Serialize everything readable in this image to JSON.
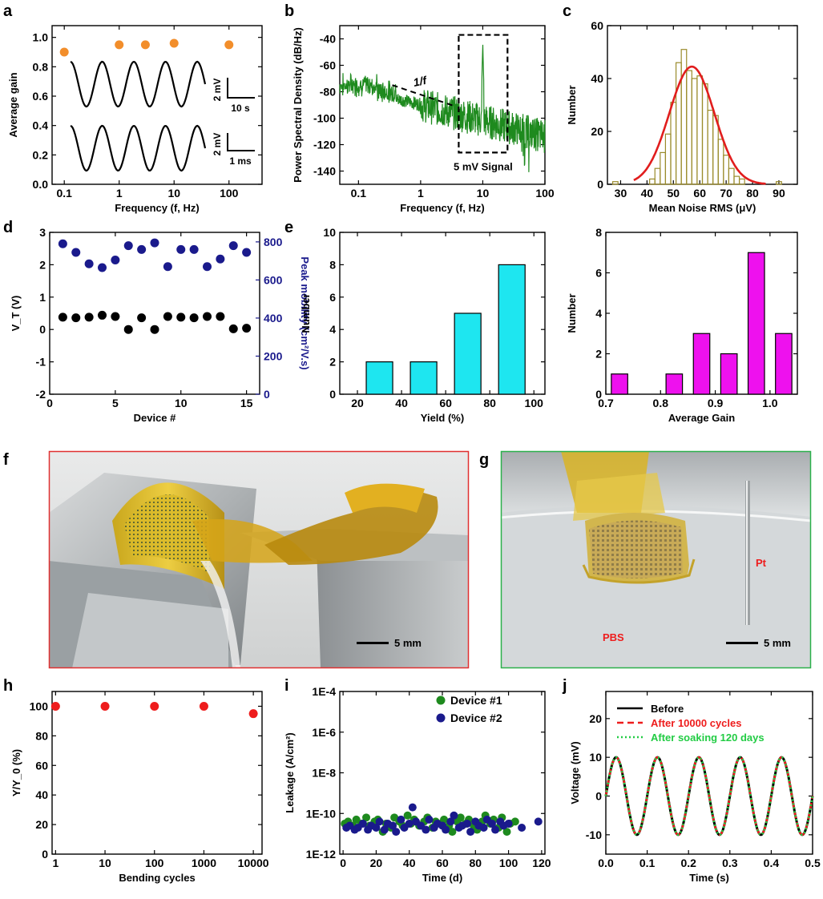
{
  "figure": {
    "panel_labels": [
      "a",
      "b",
      "c",
      "d",
      "e",
      "f",
      "g",
      "h",
      "i",
      "j"
    ]
  },
  "chart_data": [
    {
      "panel": "a",
      "type": "scatter",
      "xlabel": "Frequency (f, Hz)",
      "ylabel": "Average gain",
      "xscale": "log",
      "xlim": [
        0.06,
        400
      ],
      "ylim": [
        0.0,
        1.08
      ],
      "xticks": [
        0.1,
        1,
        10,
        100
      ],
      "xticklabels": [
        "0.1",
        "1",
        "10",
        "100"
      ],
      "yticks": [
        0.0,
        0.2,
        0.4,
        0.6,
        0.8,
        1.0
      ],
      "yticklabels": [
        "0.0",
        "0.2",
        "0.4",
        "0.6",
        "0.8",
        "1.0"
      ],
      "points": [
        {
          "x": 0.1,
          "y": 0.9
        },
        {
          "x": 1,
          "y": 0.95
        },
        {
          "x": 3,
          "y": 0.95
        },
        {
          "x": 10,
          "y": 0.96
        },
        {
          "x": 100,
          "y": 0.95
        }
      ],
      "point_color": "#f28e2b",
      "insets": [
        {
          "scale_v": "2 mV",
          "scale_t": "10 s"
        },
        {
          "scale_v": "2 mV",
          "scale_t": "1 ms"
        }
      ]
    },
    {
      "panel": "b",
      "type": "line",
      "xlabel": "Frequency (f, Hz)",
      "ylabel": "Power Spectral Density (dB/Hz)",
      "xscale": "log",
      "xlim": [
        0.05,
        100
      ],
      "ylim": [
        -150,
        -30
      ],
      "xticks": [
        0.1,
        1,
        10,
        100
      ],
      "xticklabels": [
        "0.1",
        "1",
        "10",
        "100"
      ],
      "yticks": [
        -140,
        -120,
        -100,
        -80,
        -60,
        -40
      ],
      "yticklabels": [
        "-140",
        "-120",
        "-100",
        "-80",
        "-60",
        "-40"
      ],
      "line_color": "#1e8a1e",
      "annotations": [
        "1/f",
        "5 mV Signal"
      ],
      "peak": {
        "x": 10,
        "y": -44
      }
    },
    {
      "panel": "c",
      "type": "bar",
      "xlabel": "Mean Noise RMS (μV)",
      "ylabel": "Number",
      "xlim": [
        25,
        97
      ],
      "ylim": [
        0,
        60
      ],
      "xticks": [
        30,
        40,
        50,
        60,
        70,
        80,
        90
      ],
      "xticklabels": [
        "30",
        "40",
        "50",
        "60",
        "70",
        "80",
        "90"
      ],
      "yticks": [
        0,
        20,
        40,
        60
      ],
      "yticklabels": [
        "0",
        "20",
        "40",
        "60"
      ],
      "bin_width": 2,
      "bins": [
        {
          "x": 28,
          "y": 1
        },
        {
          "x": 42,
          "y": 2
        },
        {
          "x": 44,
          "y": 6
        },
        {
          "x": 46,
          "y": 12
        },
        {
          "x": 48,
          "y": 19
        },
        {
          "x": 50,
          "y": 31
        },
        {
          "x": 52,
          "y": 46
        },
        {
          "x": 54,
          "y": 51
        },
        {
          "x": 56,
          "y": 43
        },
        {
          "x": 58,
          "y": 40
        },
        {
          "x": 60,
          "y": 41
        },
        {
          "x": 62,
          "y": 38
        },
        {
          "x": 64,
          "y": 28
        },
        {
          "x": 66,
          "y": 26
        },
        {
          "x": 68,
          "y": 17
        },
        {
          "x": 70,
          "y": 11
        },
        {
          "x": 72,
          "y": 6
        },
        {
          "x": 74,
          "y": 3
        },
        {
          "x": 76,
          "y": 2
        },
        {
          "x": 90,
          "y": 1
        }
      ],
      "fit": {
        "mean": 57,
        "sigma": 8.5,
        "peak": 44.5,
        "color": "#e11d1d"
      },
      "bar_color": "#9a8b2b"
    },
    {
      "panel": "d",
      "type": "scatter",
      "xlabel": "Device #",
      "ylabel": "V_T (V)",
      "y2label": "Peak mobility (cm²/V.s)",
      "xlim": [
        0,
        16
      ],
      "ylim": [
        -2,
        3
      ],
      "y2lim": [
        0,
        850
      ],
      "xticks": [
        0,
        5,
        10,
        15
      ],
      "xticklabels": [
        "0",
        "5",
        "10",
        "15"
      ],
      "yticks": [
        -2,
        -1,
        0,
        1,
        2,
        3
      ],
      "yticklabels": [
        "-2",
        "-1",
        "0",
        "1",
        "2",
        "3"
      ],
      "y2ticks": [
        0,
        200,
        400,
        600,
        800
      ],
      "y2ticklabels": [
        "0",
        "200",
        "400",
        "600",
        "800"
      ],
      "vt": [
        0.38,
        0.36,
        0.38,
        0.44,
        0.4,
        0.0,
        0.36,
        0.0,
        0.4,
        0.38,
        0.36,
        0.4,
        0.4,
        0.02,
        0.04
      ],
      "mobility": [
        790,
        745,
        685,
        665,
        705,
        780,
        760,
        795,
        670,
        760,
        760,
        670,
        710,
        780,
        745
      ],
      "vt_color": "#000000",
      "mobility_color": "#1a1a8c"
    },
    {
      "panel": "e-left",
      "type": "bar",
      "xlabel": "Yield (%)",
      "ylabel": "Number",
      "xlim": [
        12,
        105
      ],
      "ylim": [
        0,
        10
      ],
      "xticks": [
        20,
        40,
        60,
        80,
        100
      ],
      "xticklabels": [
        "20",
        "40",
        "60",
        "80",
        "100"
      ],
      "yticks": [
        0,
        2,
        4,
        6,
        8,
        10
      ],
      "yticklabels": [
        "0",
        "2",
        "4",
        "6",
        "8",
        "10"
      ],
      "bar_width": 12,
      "bars": [
        {
          "x": 30,
          "y": 2
        },
        {
          "x": 50,
          "y": 2
        },
        {
          "x": 70,
          "y": 5
        },
        {
          "x": 90,
          "y": 8
        }
      ],
      "bar_color": "#1ee6f0"
    },
    {
      "panel": "e-right",
      "type": "bar",
      "xlabel": "Average Gain",
      "ylabel": "Number",
      "xlim": [
        0.7,
        1.05
      ],
      "ylim": [
        0,
        8
      ],
      "xticks": [
        0.7,
        0.8,
        0.9,
        1.0
      ],
      "xticklabels": [
        "0.7",
        "0.8",
        "0.9",
        "1.0"
      ],
      "yticks": [
        0,
        2,
        4,
        6,
        8
      ],
      "yticklabels": [
        "0",
        "2",
        "4",
        "6",
        "8"
      ],
      "bar_width": 0.03,
      "bars": [
        {
          "x": 0.725,
          "y": 1
        },
        {
          "x": 0.825,
          "y": 1
        },
        {
          "x": 0.875,
          "y": 3
        },
        {
          "x": 0.925,
          "y": 2
        },
        {
          "x": 0.975,
          "y": 7
        },
        {
          "x": 1.025,
          "y": 3
        }
      ],
      "bar_color": "#ee11ee"
    },
    {
      "panel": "h",
      "type": "scatter",
      "xlabel": "Bending cycles",
      "ylabel": "Y/Y_0 (%)",
      "xscale": "log",
      "xlim": [
        0.85,
        15000
      ],
      "ylim": [
        0,
        110
      ],
      "xticks": [
        1,
        10,
        100,
        1000,
        10000
      ],
      "xticklabels": [
        "1",
        "10",
        "100",
        "1000",
        "10000"
      ],
      "yticks": [
        0,
        20,
        40,
        60,
        80,
        100
      ],
      "yticklabels": [
        "0",
        "20",
        "40",
        "60",
        "80",
        "100"
      ],
      "points": [
        {
          "x": 1,
          "y": 100
        },
        {
          "x": 10,
          "y": 100
        },
        {
          "x": 100,
          "y": 100
        },
        {
          "x": 1000,
          "y": 100
        },
        {
          "x": 10000,
          "y": 95
        }
      ],
      "point_color": "#ee1c1c"
    },
    {
      "panel": "i",
      "type": "scatter",
      "xlabel": "Time (d)",
      "ylabel": "Leakage (A/cm²)",
      "yscale": "log",
      "xlim": [
        -2,
        122
      ],
      "ylim_exp": [
        -12,
        -4
      ],
      "xticks": [
        0,
        20,
        40,
        60,
        80,
        100,
        120
      ],
      "xticklabels": [
        "0",
        "20",
        "40",
        "60",
        "80",
        "100",
        "120"
      ],
      "yticks_exp": [
        -12,
        -10,
        -8,
        -6,
        -4
      ],
      "yticklabels": [
        "1E-12",
        "1E-10",
        "1E-8",
        "1E-6",
        "1E-4"
      ],
      "series": [
        {
          "name": "Device #1",
          "color": "#1e8a1e",
          "log_y": [
            -10.5,
            -10.4,
            -10.6,
            -10.3,
            -10.5,
            -10.2,
            -10.6,
            -10.4,
            -10.3,
            -10.9,
            -10.5,
            -10.7,
            -10.2,
            -10.4,
            -10.6,
            -10.1,
            -10.5,
            -10.3,
            -10.6,
            -10.4,
            -10.2,
            -10.7,
            -10.4,
            -10.5,
            -10.3,
            -10.6,
            -10.9,
            -10.4,
            -10.2,
            -10.5,
            -10.3,
            -10.6,
            -10.8,
            -10.4,
            -10.1,
            -10.5,
            -10.3,
            -10.7,
            -10.2,
            -10.9,
            -10.5,
            -10.4
          ],
          "x": [
            1,
            3,
            6,
            8,
            11,
            14,
            16,
            19,
            21,
            24,
            26,
            29,
            31,
            34,
            36,
            39,
            41,
            43,
            46,
            49,
            51,
            54,
            56,
            59,
            61,
            64,
            66,
            69,
            71,
            74,
            76,
            79,
            81,
            84,
            86,
            89,
            91,
            94,
            96,
            99,
            101,
            104
          ]
        },
        {
          "name": "Device #2",
          "color": "#1a1a8c",
          "log_y": [
            -10.7,
            -10.6,
            -10.8,
            -10.7,
            -10.5,
            -10.8,
            -10.6,
            -10.7,
            -10.4,
            -10.8,
            -10.5,
            -10.6,
            -10.9,
            -10.3,
            -10.7,
            -10.5,
            -9.7,
            -10.4,
            -10.6,
            -10.8,
            -10.3,
            -10.7,
            -10.5,
            -10.6,
            -10.8,
            -10.4,
            -10.1,
            -10.7,
            -10.6,
            -10.5,
            -10.9,
            -10.4,
            -10.6,
            -10.7,
            -10.3,
            -10.5,
            -10.8,
            -10.4,
            -10.6,
            -10.5,
            -10.7,
            -10.4
          ],
          "x": [
            2,
            4,
            7,
            9,
            12,
            15,
            17,
            20,
            22,
            25,
            27,
            30,
            32,
            35,
            37,
            40,
            42,
            44,
            47,
            50,
            52,
            55,
            57,
            60,
            62,
            65,
            67,
            70,
            72,
            75,
            77,
            80,
            82,
            85,
            87,
            90,
            92,
            95,
            97,
            100,
            108,
            118
          ]
        }
      ]
    },
    {
      "panel": "j",
      "type": "line",
      "xlabel": "Time (s)",
      "ylabel": "Voltage (mV)",
      "xlim": [
        0,
        0.5
      ],
      "ylim": [
        -15,
        27
      ],
      "xticks": [
        0.0,
        0.1,
        0.2,
        0.3,
        0.4,
        0.5
      ],
      "xticklabels": [
        "0.0",
        "0.1",
        "0.2",
        "0.3",
        "0.4",
        "0.5"
      ],
      "yticks": [
        -10,
        0,
        10,
        20
      ],
      "yticklabels": [
        "-10",
        "0",
        "10",
        "20"
      ],
      "frequency_hz": 10,
      "amplitude_mv": 10,
      "series": [
        {
          "name": "Before",
          "color": "#000000",
          "style": "solid"
        },
        {
          "name": "After 10000 cycles",
          "color": "#ee1c1c",
          "style": "dashed"
        },
        {
          "name": "After soaking 120 days",
          "color": "#22cc44",
          "style": "dotted"
        }
      ]
    }
  ],
  "photos": {
    "f": {
      "scale_label": "5 mm",
      "border_color": "#e03030"
    },
    "g": {
      "scale_label": "5 mm",
      "labels": [
        "Pt",
        "PBS"
      ],
      "border_color": "#2bb04a",
      "label_color": "#ee1c1c"
    }
  }
}
